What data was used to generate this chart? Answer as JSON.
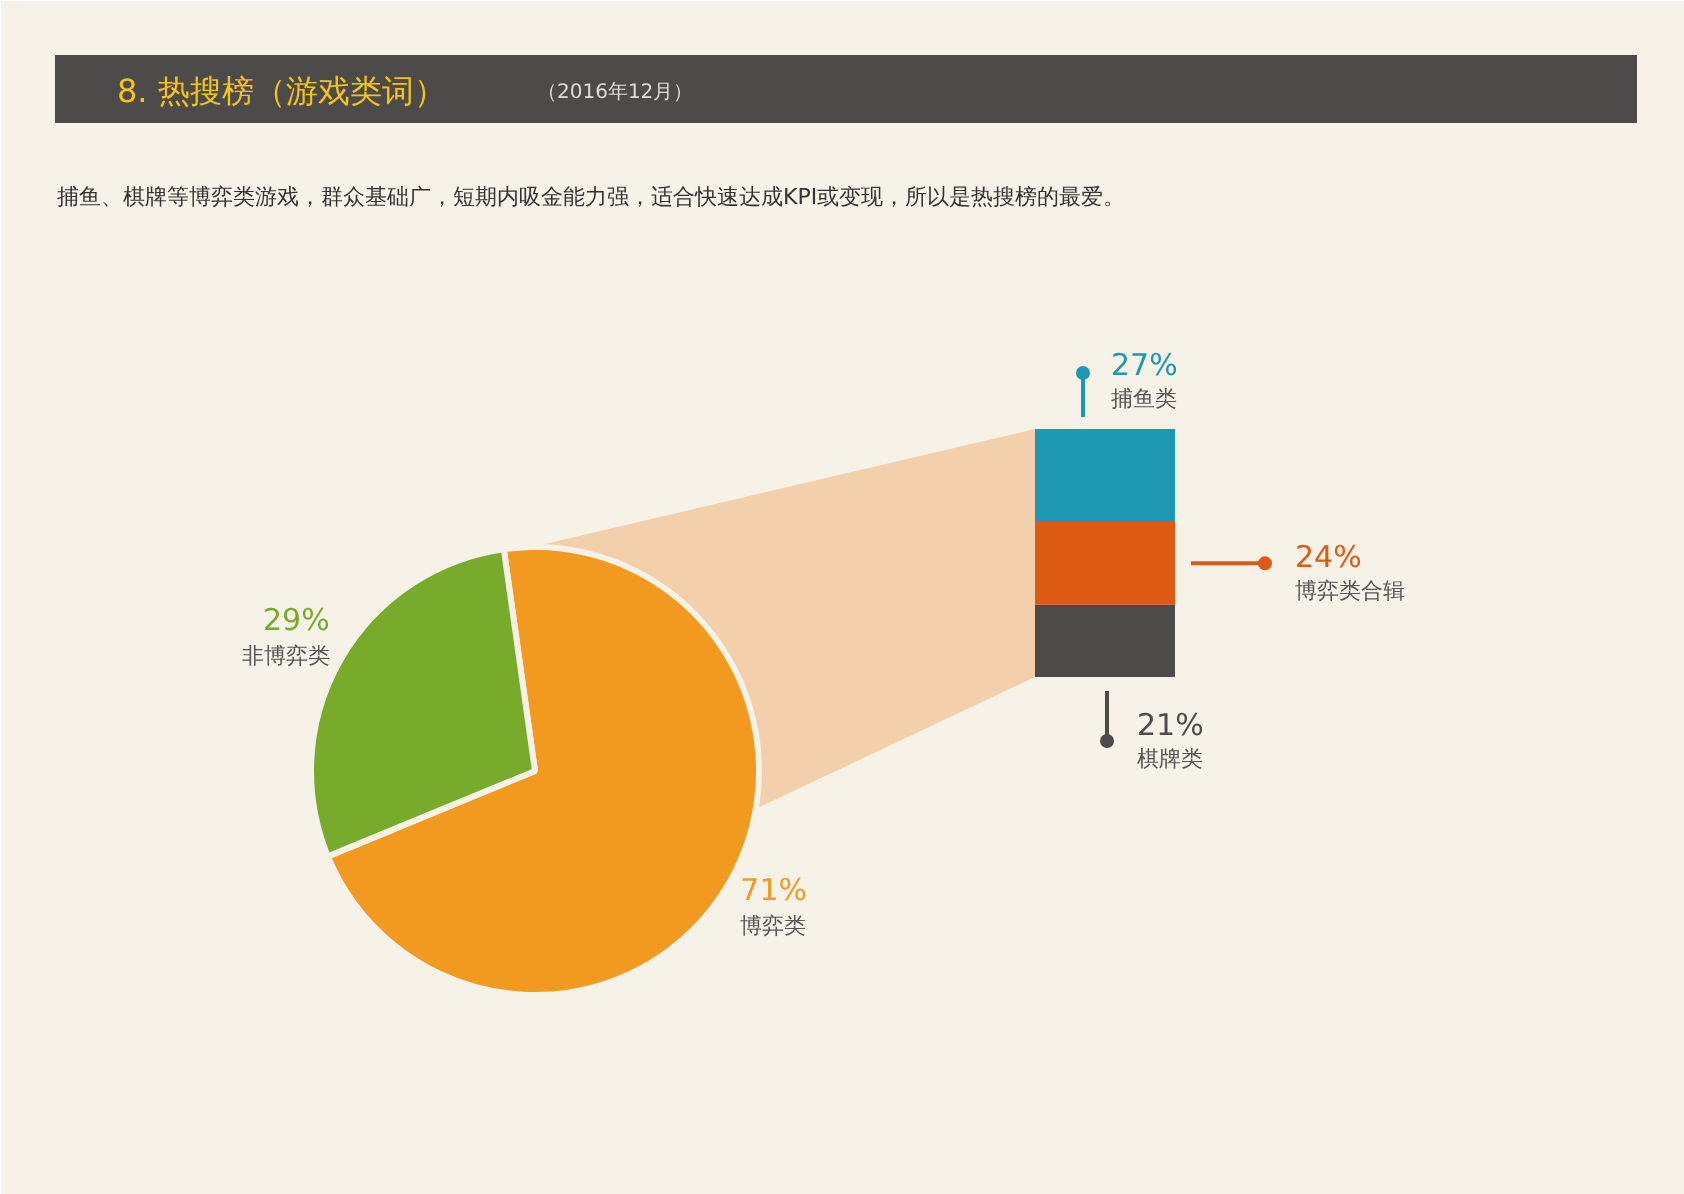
{
  "chart_data": [
    {
      "type": "pie",
      "title": "8.  热搜榜（游戏类词）",
      "subtitle": "（2016年12月）",
      "annotations": [
        "捕鱼、棋牌等博弈类游戏，群众基础广，短期内吸金能力强，适合快速达成KPI或变现，所以是热搜榜的最爱。"
      ],
      "categories": [
        "博弈类",
        "非博弈类"
      ],
      "values": [
        71,
        29
      ],
      "colors": [
        "#f29a1f",
        "#78ab2b"
      ],
      "value_labels": [
        "71%",
        "29%"
      ]
    },
    {
      "type": "bar",
      "stacked": true,
      "categories": [
        null
      ],
      "series": [
        {
          "name": "棋牌类",
          "color": "#4d4a4a",
          "values": [
            21
          ],
          "value_labels": [
            "21%"
          ]
        },
        {
          "name": "博弈类合辑",
          "color": "#dd5a12",
          "values": [
            24
          ],
          "value_labels": [
            "24%"
          ]
        },
        {
          "name": "捕鱼类",
          "color": "#1e97b3",
          "values": [
            27
          ],
          "value_labels": [
            "27%"
          ]
        }
      ]
    }
  ]
}
